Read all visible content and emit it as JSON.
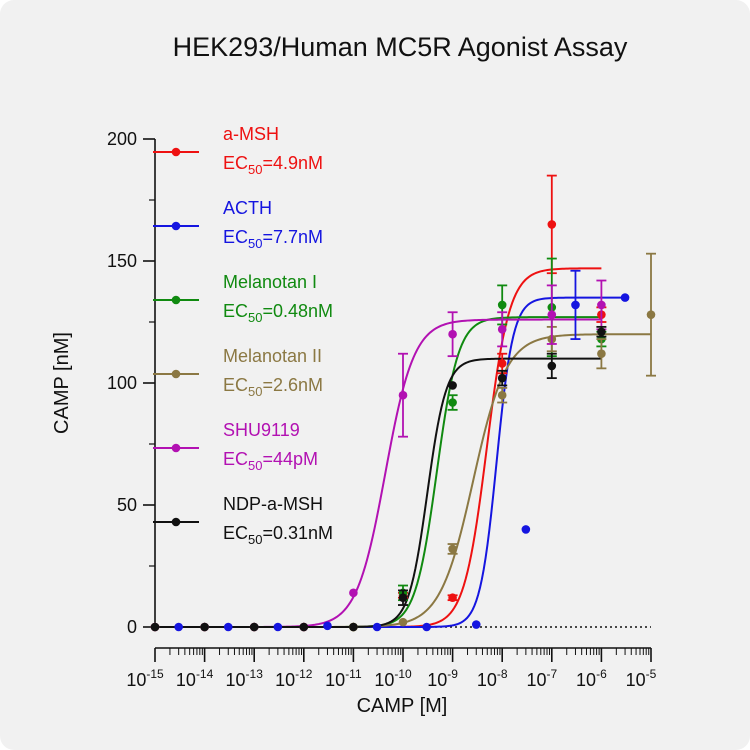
{
  "chart_data": {
    "type": "scatter",
    "title": "HEK293/Human MC5R Agonist Assay",
    "xlabel": "CAMP [M]",
    "ylabel": "CAMP [nM]",
    "x_scale": "log10",
    "xlim": [
      1e-15,
      1e-05
    ],
    "ylim": [
      0,
      200
    ],
    "x_tick_labels": [
      {
        "base": "10",
        "exp": "-15"
      },
      {
        "base": "10",
        "exp": "-14"
      },
      {
        "base": "10",
        "exp": "-13"
      },
      {
        "base": "10",
        "exp": "-12"
      },
      {
        "base": "10",
        "exp": "-11"
      },
      {
        "base": "10",
        "exp": "-10"
      },
      {
        "base": "10",
        "exp": "-9"
      },
      {
        "base": "10",
        "exp": "-8"
      },
      {
        "base": "10",
        "exp": "-7"
      },
      {
        "base": "10",
        "exp": "-6"
      },
      {
        "base": "10",
        "exp": "-5"
      }
    ],
    "y_ticks": [
      0,
      50,
      100,
      150,
      200
    ],
    "baseline": "dotted line at y=0",
    "legend_position": "top-left",
    "series": [
      {
        "name": "a-MSH",
        "ec50_label": "EC",
        "ec50_sub": "50",
        "ec50_value": "=4.9nM",
        "color": "#ee1111",
        "fit": {
          "bottom": 0,
          "top": 147,
          "ec50": 4.9e-09,
          "hill": 1.9
        },
        "points": [
          {
            "x": 1e-15,
            "y": 0
          },
          {
            "x": 1e-14,
            "y": 0
          },
          {
            "x": 1e-13,
            "y": 0
          },
          {
            "x": 1e-12,
            "y": 0
          },
          {
            "x": 1e-11,
            "y": 0
          },
          {
            "x": 1e-10,
            "y": 13,
            "err": 1
          },
          {
            "x": 1e-09,
            "y": 12,
            "err": 1
          },
          {
            "x": 1e-08,
            "y": 108,
            "err": 4
          },
          {
            "x": 1e-07,
            "y": 165,
            "err": 20
          },
          {
            "x": 1e-06,
            "y": 128,
            "err": 3
          }
        ]
      },
      {
        "name": "ACTH",
        "ec50_label": "EC",
        "ec50_sub": "50",
        "ec50_value": "=7.7nM",
        "color": "#1515e0",
        "fit": {
          "bottom": 0,
          "top": 135,
          "ec50": 7.7e-09,
          "hill": 2.6
        },
        "points": [
          {
            "x": 3e-15,
            "y": 0
          },
          {
            "x": 3e-14,
            "y": 0
          },
          {
            "x": 3e-13,
            "y": 0
          },
          {
            "x": 3e-12,
            "y": 0.5
          },
          {
            "x": 3e-11,
            "y": 0
          },
          {
            "x": 3e-10,
            "y": 0
          },
          {
            "x": 3e-09,
            "y": 1
          },
          {
            "x": 3e-08,
            "y": 40
          },
          {
            "x": 3e-07,
            "y": 132,
            "err": 14
          },
          {
            "x": 3e-06,
            "y": 135
          }
        ]
      },
      {
        "name": "Melanotan I",
        "ec50_label": "EC",
        "ec50_sub": "50",
        "ec50_value": "=0.48nM",
        "color": "#108a10",
        "fit": {
          "bottom": 0,
          "top": 127,
          "ec50": 4.8e-10,
          "hill": 2.0
        },
        "points": [
          {
            "x": 1e-15,
            "y": 0
          },
          {
            "x": 1e-14,
            "y": 0
          },
          {
            "x": 1e-13,
            "y": 0
          },
          {
            "x": 1e-12,
            "y": 0
          },
          {
            "x": 1e-11,
            "y": 0
          },
          {
            "x": 1e-10,
            "y": 14,
            "err": 3
          },
          {
            "x": 1e-09,
            "y": 92,
            "err": 3
          },
          {
            "x": 1e-08,
            "y": 132,
            "err": 8
          },
          {
            "x": 1e-07,
            "y": 131,
            "err": 20
          },
          {
            "x": 1e-06,
            "y": 118,
            "err": 3
          }
        ]
      },
      {
        "name": "Melanotan II",
        "ec50_label": "EC",
        "ec50_sub": "50",
        "ec50_value": "=2.6nM",
        "color": "#8b7843",
        "fit": {
          "bottom": 0,
          "top": 120,
          "ec50": 2.6e-09,
          "hill": 1.3
        },
        "points": [
          {
            "x": 1e-15,
            "y": 0
          },
          {
            "x": 1e-14,
            "y": 0
          },
          {
            "x": 1e-13,
            "y": 0
          },
          {
            "x": 1e-12,
            "y": 0
          },
          {
            "x": 1e-11,
            "y": 0
          },
          {
            "x": 1e-10,
            "y": 2
          },
          {
            "x": 1e-09,
            "y": 32,
            "err": 2
          },
          {
            "x": 1e-08,
            "y": 95,
            "err": 3
          },
          {
            "x": 1e-07,
            "y": 118,
            "err": 5
          },
          {
            "x": 1e-06,
            "y": 112,
            "err": 6
          },
          {
            "x": 1e-05,
            "y": 128,
            "err": 25
          }
        ]
      },
      {
        "name": "SHU9119",
        "ec50_label": "EC",
        "ec50_sub": "50",
        "ec50_value": "=44pM",
        "color": "#b211b2",
        "fit": {
          "bottom": 0,
          "top": 126,
          "ec50": 4.4e-11,
          "hill": 1.5
        },
        "points": [
          {
            "x": 1e-15,
            "y": 0
          },
          {
            "x": 1e-14,
            "y": 0
          },
          {
            "x": 1e-13,
            "y": 0
          },
          {
            "x": 1e-12,
            "y": 0
          },
          {
            "x": 1e-11,
            "y": 14
          },
          {
            "x": 1e-10,
            "y": 95,
            "err": 17
          },
          {
            "x": 1e-09,
            "y": 120,
            "err": 9
          },
          {
            "x": 1e-08,
            "y": 122,
            "err": 7
          },
          {
            "x": 1e-07,
            "y": 128,
            "err": 12
          },
          {
            "x": 1e-06,
            "y": 132,
            "err": 10
          }
        ]
      },
      {
        "name": "NDP-a-MSH",
        "ec50_label": "EC",
        "ec50_sub": "50",
        "ec50_value": "=0.31nM",
        "color": "#111111",
        "fit": {
          "bottom": 0,
          "top": 110,
          "ec50": 3.1e-10,
          "hill": 2.3
        },
        "points": [
          {
            "x": 1e-15,
            "y": 0
          },
          {
            "x": 1e-14,
            "y": 0
          },
          {
            "x": 1e-13,
            "y": 0
          },
          {
            "x": 1e-12,
            "y": 0
          },
          {
            "x": 1e-11,
            "y": 0
          },
          {
            "x": 1e-10,
            "y": 12,
            "err": 3
          },
          {
            "x": 1e-09,
            "y": 99
          },
          {
            "x": 1e-08,
            "y": 102,
            "err": 3
          },
          {
            "x": 1e-07,
            "y": 107,
            "err": 5
          },
          {
            "x": 1e-06,
            "y": 121,
            "err": 2
          }
        ]
      }
    ]
  }
}
